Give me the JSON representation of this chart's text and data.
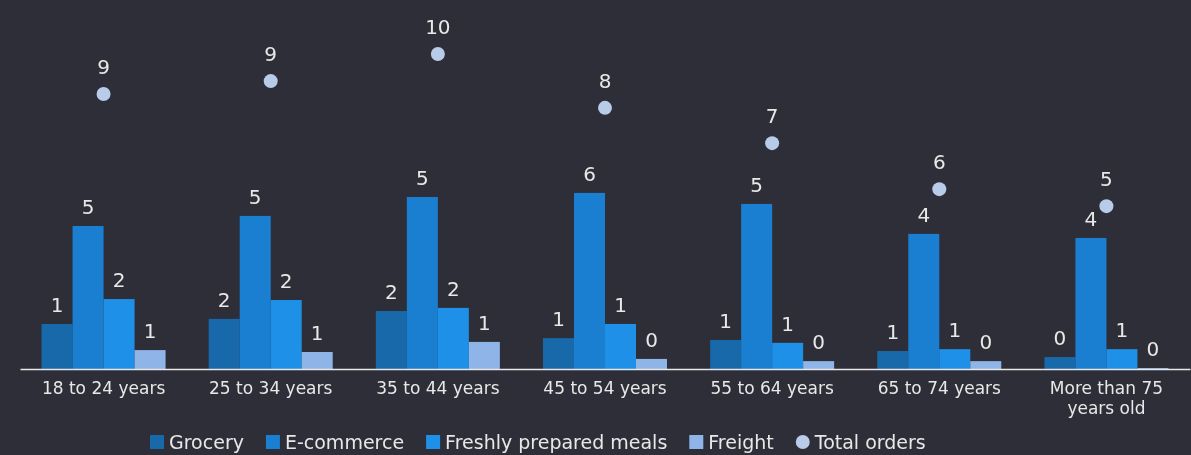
{
  "chart_data": {
    "type": "bar",
    "categories": [
      "18 to 24 years",
      "25 to 34 years",
      "35 to 44 years",
      "45 to 54 years",
      "55 to 64 years",
      "65 to 74 years",
      "More than 75 years old"
    ],
    "series": [
      {
        "name": "Grocery",
        "color": "#1769aa",
        "values": [
          1.43,
          1.59,
          1.84,
          0.98,
          0.92,
          0.57,
          0.38
        ],
        "value_labels": [
          "1",
          "2",
          "2",
          "1",
          "1",
          "1",
          "0"
        ]
      },
      {
        "name": "E-commerce",
        "color": "#1a7fd0",
        "values": [
          4.54,
          4.86,
          5.46,
          5.59,
          5.24,
          4.29,
          4.16
        ],
        "value_labels": [
          "5",
          "5",
          "5",
          "6",
          "5",
          "4",
          "4"
        ]
      },
      {
        "name": "Freshly prepared meals",
        "color": "#1e90e8",
        "values": [
          2.22,
          2.19,
          1.94,
          1.43,
          0.83,
          0.63,
          0.63
        ],
        "value_labels": [
          "2",
          "2",
          "2",
          "1",
          "1",
          "1",
          "1"
        ]
      },
      {
        "name": "Freight",
        "color": "#8fb4e8",
        "values": [
          0.6,
          0.54,
          0.86,
          0.32,
          0.25,
          0.25,
          0.03
        ],
        "value_labels": [
          "1",
          "1",
          "1",
          "0",
          "0",
          "0",
          "0"
        ]
      },
      {
        "name": "Total orders",
        "type": "scatter",
        "color": "#b8cbe8",
        "values": [
          8.73,
          9.14,
          10.0,
          8.29,
          7.17,
          5.71,
          5.17
        ],
        "value_labels": [
          "9",
          "9",
          "10",
          "8",
          "7",
          "6",
          "5"
        ]
      }
    ],
    "legend": "bottom",
    "marker": "circle"
  }
}
